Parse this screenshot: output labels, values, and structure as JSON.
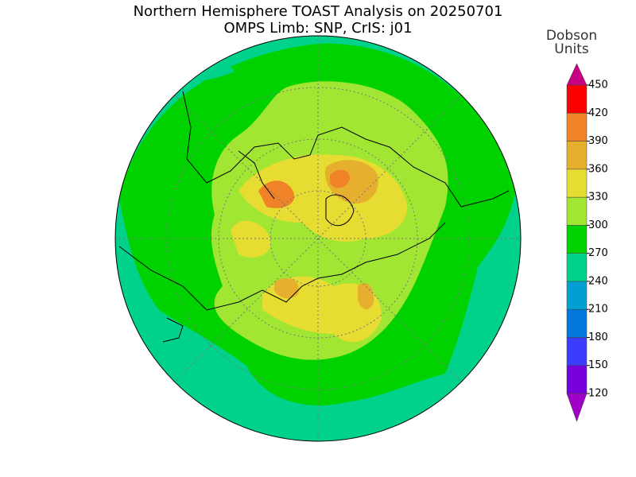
{
  "title": [
    "Northern Hemisphere TOAST Analysis on 20250701",
    "OMPS Limb: SNP, CrIS: j01"
  ],
  "colorbar": {
    "label": [
      "Dobson",
      "Units"
    ],
    "ticks": [
      120,
      150,
      180,
      210,
      240,
      270,
      300,
      330,
      360,
      390,
      420,
      450
    ],
    "colors": [
      "#a000c8",
      "#7800dc",
      "#3c3cff",
      "#0078dc",
      "#00a0d2",
      "#00d28c",
      "#00d200",
      "#a0e632",
      "#e6dc32",
      "#e6af2d",
      "#f08228",
      "#fa0000",
      "#c80082"
    ]
  }
}
